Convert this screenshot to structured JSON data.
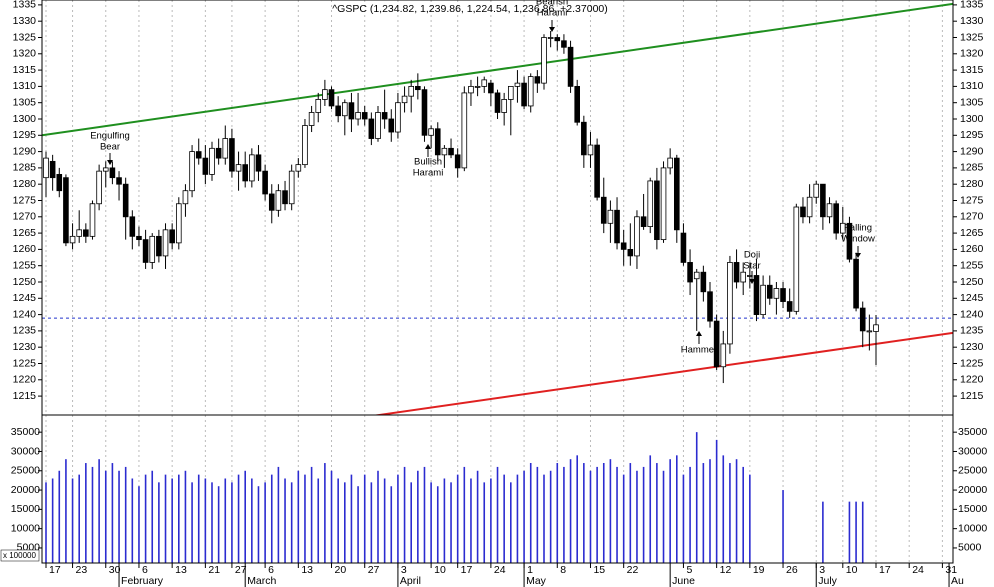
{
  "chart_data": {
    "type": "candlestick",
    "title": "^GSPC (1,234.82, 1,239.86, 1,224.54, 1,236.86, +2.37000)",
    "categories": [
      "17",
      null,
      null,
      null,
      "23",
      null,
      null,
      null,
      null,
      "30",
      null,
      null,
      null,
      null,
      "6",
      null,
      null,
      null,
      null,
      "13",
      null,
      null,
      null,
      null,
      "21",
      null,
      null,
      null,
      "27",
      null,
      null,
      null,
      null,
      "6",
      null,
      null,
      null,
      null,
      "13",
      null,
      null,
      null,
      null,
      "20",
      null,
      null,
      null,
      null,
      "27",
      null,
      null,
      null,
      null,
      "3",
      null,
      null,
      null,
      null,
      "10",
      null,
      null,
      null,
      "17",
      null,
      null,
      null,
      null,
      "24",
      null,
      null,
      null,
      null,
      "1",
      null,
      null,
      null,
      null,
      "8",
      null,
      null,
      null,
      null,
      "15",
      null,
      null,
      null,
      null,
      "22",
      null,
      null,
      null,
      null,
      null,
      null,
      null,
      null,
      "5",
      null,
      null,
      null,
      null,
      "12",
      null,
      null,
      null,
      null,
      "19",
      null,
      null,
      null,
      null,
      "26",
      null,
      null,
      null,
      null,
      "3",
      null,
      null,
      null,
      "10",
      null,
      null,
      null,
      null,
      "17",
      null,
      null,
      null,
      null,
      "24",
      null,
      null,
      null,
      null,
      "31",
      null
    ],
    "months": [
      null,
      null,
      null,
      null,
      null,
      null,
      null,
      null,
      null,
      null,
      null,
      "February",
      null,
      null,
      null,
      null,
      null,
      null,
      null,
      null,
      null,
      null,
      null,
      null,
      null,
      null,
      null,
      null,
      null,
      null,
      "March",
      null,
      null,
      null,
      null,
      null,
      null,
      null,
      null,
      null,
      null,
      null,
      null,
      null,
      null,
      null,
      null,
      null,
      null,
      null,
      null,
      null,
      null,
      "April",
      null,
      null,
      null,
      null,
      null,
      null,
      null,
      null,
      null,
      null,
      null,
      null,
      null,
      null,
      null,
      null,
      null,
      null,
      "May",
      null,
      null,
      null,
      null,
      null,
      null,
      null,
      null,
      null,
      null,
      null,
      null,
      null,
      null,
      null,
      null,
      null,
      null,
      null,
      null,
      null,
      "June",
      null,
      null,
      null,
      null,
      null,
      null,
      null,
      null,
      null,
      null,
      null,
      null,
      null,
      null,
      null,
      null,
      null,
      null,
      null,
      null,
      null,
      "July",
      null,
      null,
      null,
      null,
      null,
      null,
      null,
      null,
      null,
      null,
      null,
      null,
      null,
      null,
      null,
      null,
      null,
      null,
      null,
      "Au"
    ],
    "open": [
      1282,
      1287,
      1283,
      1282,
      1262,
      1264,
      1266,
      1264,
      1274,
      1284,
      1285,
      1282,
      1280,
      1270,
      1264,
      1263,
      1256,
      1264,
      1258,
      1266,
      1262,
      1274,
      1278,
      1290,
      1288,
      1283,
      1291,
      1288,
      1294,
      1284,
      1286,
      1281,
      1289,
      1284,
      1277,
      1272,
      1278,
      1274,
      1284,
      1286,
      1298,
      1302,
      1306,
      1309,
      1304,
      1301,
      1305,
      1300,
      1302,
      1300,
      1294,
      1302,
      1300,
      1296,
      1305,
      1307,
      1310,
      1309,
      1295,
      1297,
      1289,
      1291,
      1289,
      1285,
      1308,
      1310,
      1310,
      1311,
      1308,
      1302,
      1306,
      1310,
      1311,
      1304,
      1313,
      1311,
      1325,
      1325,
      1324,
      1322,
      1310,
      1299,
      1289,
      1292,
      1276,
      1268,
      1272,
      1262,
      1260,
      1258,
      1270,
      1267,
      1281,
      1263,
      1285,
      1288,
      1265,
      1256,
      1251,
      1253,
      1247,
      1238,
      1224,
      1231,
      1256,
      1250,
      1252,
      1252,
      1240,
      1249,
      1245,
      1248,
      1244,
      1241,
      1273,
      1270,
      1276,
      1280,
      1270,
      1274,
      1265,
      1268,
      1257,
      1242,
      1235,
      1234.82,
      null,
      null,
      null,
      null,
      null,
      null,
      null,
      null,
      null,
      null,
      null
    ],
    "high": [
      1290,
      1289,
      1285,
      1283,
      1268,
      1272,
      1268,
      1275,
      1286,
      1287,
      1287,
      1284,
      1282,
      1272,
      1267,
      1266,
      1265,
      1266,
      1268,
      1268,
      1276,
      1280,
      1292,
      1294,
      1292,
      1293,
      1294,
      1298,
      1297,
      1290,
      1290,
      1291,
      1292,
      1286,
      1280,
      1280,
      1281,
      1286,
      1288,
      1300,
      1304,
      1308,
      1312,
      1310,
      1307,
      1306,
      1308,
      1308,
      1304,
      1302,
      1304,
      1309,
      1303,
      1308,
      1310,
      1312,
      1314,
      1310,
      1298,
      1299,
      1292,
      1294,
      1291,
      1310,
      1312,
      1313,
      1313,
      1312,
      1309,
      1308,
      1310,
      1315,
      1313,
      1314,
      1315,
      1326,
      1327,
      1326,
      1326,
      1324,
      1312,
      1301,
      1296,
      1294,
      1282,
      1275,
      1276,
      1266,
      1268,
      1272,
      1277,
      1282,
      1285,
      1287,
      1291,
      1289,
      1268,
      1260,
      1254,
      1255,
      1250,
      1240,
      1235,
      1258,
      1260,
      1256,
      1256,
      1257,
      1252,
      1252,
      1250,
      1250,
      1248,
      1274,
      1276,
      1280,
      1281,
      1280,
      1276,
      1275,
      1273,
      1270,
      1259,
      1244,
      1240,
      1239.86,
      null,
      null,
      null,
      null,
      null,
      null,
      null,
      null,
      null,
      null,
      null
    ],
    "low": [
      1276,
      1278,
      1276,
      1261,
      1260,
      1262,
      1262,
      1263,
      1272,
      1279,
      1280,
      1275,
      1263,
      1260,
      1261,
      1254,
      1254,
      1256,
      1254,
      1260,
      1260,
      1270,
      1276,
      1286,
      1280,
      1281,
      1286,
      1286,
      1282,
      1278,
      1279,
      1279,
      1281,
      1275,
      1268,
      1270,
      1272,
      1272,
      1282,
      1285,
      1296,
      1299,
      1304,
      1303,
      1299,
      1295,
      1296,
      1298,
      1298,
      1292,
      1293,
      1297,
      1293,
      1294,
      1302,
      1302,
      1306,
      1293,
      1291,
      1287,
      1285,
      1288,
      1282,
      1284,
      1304,
      1307,
      1308,
      1304,
      1300,
      1298,
      1295,
      1305,
      1303,
      1302,
      1308,
      1309,
      1322,
      1321,
      1320,
      1308,
      1298,
      1285,
      1285,
      1275,
      1265,
      1262,
      1260,
      1255,
      1255,
      1254,
      1266,
      1265,
      1260,
      1262,
      1283,
      1262,
      1255,
      1246,
      1235,
      1244,
      1236,
      1223,
      1219,
      1228,
      1248,
      1246,
      1248,
      1238,
      1239,
      1243,
      1240,
      1242,
      1239,
      1240,
      1268,
      1268,
      1274,
      1266,
      1268,
      1263,
      1263,
      1256,
      1241,
      1230,
      1229,
      1224.54,
      null,
      null,
      null,
      null,
      null,
      null,
      null,
      null,
      null,
      null,
      null
    ],
    "close": [
      1288,
      1282,
      1278,
      1262,
      1264,
      1266,
      1264,
      1274,
      1284,
      1285,
      1282,
      1280,
      1270,
      1264,
      1263,
      1256,
      1264,
      1258,
      1266,
      1262,
      1274,
      1278,
      1290,
      1288,
      1283,
      1291,
      1288,
      1294,
      1284,
      1286,
      1281,
      1289,
      1284,
      1277,
      1272,
      1278,
      1274,
      1284,
      1286,
      1298,
      1302,
      1306,
      1309,
      1304,
      1301,
      1305,
      1300,
      1302,
      1300,
      1294,
      1302,
      1300,
      1296,
      1305,
      1307,
      1310,
      1309,
      1295,
      1297,
      1289,
      1291,
      1289,
      1285,
      1308,
      1310,
      1310,
      1312,
      1308,
      1302,
      1306,
      1310,
      1311,
      1304,
      1313,
      1311,
      1325,
      1325,
      1324,
      1322,
      1310,
      1299,
      1289,
      1292,
      1276,
      1268,
      1272,
      1262,
      1260,
      1258,
      1270,
      1267,
      1281,
      1263,
      1285,
      1288,
      1266,
      1256,
      1250,
      1253,
      1247,
      1238,
      1224,
      1231,
      1256,
      1250,
      1253,
      1252,
      1240,
      1249,
      1245,
      1248,
      1244,
      1241,
      1273,
      1270,
      1276,
      1280,
      1270,
      1274,
      1265,
      1268,
      1257,
      1242,
      1235,
      1235,
      1236.86,
      null,
      null,
      null,
      null,
      null,
      null,
      null,
      null,
      null,
      null,
      null
    ],
    "volume": [
      22000,
      23000,
      25000,
      28000,
      23000,
      24000,
      27000,
      26000,
      28000,
      25000,
      27000,
      25000,
      26000,
      23000,
      21000,
      24000,
      25000,
      22000,
      24000,
      23000,
      24000,
      25000,
      22000,
      24000,
      23000,
      22000,
      21000,
      23000,
      22000,
      24000,
      25000,
      23000,
      21000,
      22000,
      24000,
      26000,
      23000,
      22000,
      25000,
      24000,
      26000,
      23000,
      27000,
      25000,
      23000,
      22000,
      24000,
      21000,
      24000,
      22000,
      25000,
      23000,
      21000,
      24000,
      26000,
      22000,
      25000,
      26000,
      22000,
      21000,
      23000,
      22000,
      24000,
      26000,
      23000,
      25000,
      22000,
      23000,
      26000,
      24000,
      22000,
      24000,
      25000,
      27000,
      26000,
      24000,
      25000,
      27000,
      26000,
      28000,
      29000,
      27000,
      25000,
      26000,
      27000,
      28000,
      26000,
      24000,
      27000,
      25000,
      26000,
      29000,
      27000,
      25000,
      28000,
      29000,
      24000,
      26000,
      35000,
      27000,
      28000,
      33000,
      29000,
      27000,
      28000,
      26000,
      24000,
      null,
      null,
      null,
      null,
      20000,
      null,
      null,
      null,
      null,
      null,
      17000,
      null,
      null,
      null,
      17000,
      17000,
      17000,
      null,
      null,
      null,
      null,
      null,
      null,
      null,
      null,
      null,
      null,
      null,
      null,
      null
    ],
    "ylim": [
      1209.2,
      1336.5
    ],
    "yticks": [
      1215,
      1220,
      1225,
      1230,
      1235,
      1240,
      1245,
      1250,
      1255,
      1260,
      1265,
      1270,
      1275,
      1280,
      1285,
      1290,
      1295,
      1300,
      1305,
      1310,
      1315,
      1320,
      1325,
      1330,
      1335
    ],
    "volume_ylim": [
      1100,
      39450
    ],
    "volume_yticks": [
      5000,
      10000,
      15000,
      20000,
      25000,
      30000,
      35000
    ],
    "volume_unit": "x 100000",
    "volume_color": "#2b2bd0",
    "up_color": "#ffffff",
    "down_color": "#000000",
    "grid": true,
    "trendlines": [
      {
        "color": "#1f8f1f",
        "y_start": 1295,
        "y_end": 1335.3
      },
      {
        "color": "#e02020",
        "y_start": 1194.4,
        "y_end": 1234.4
      }
    ],
    "reference_line": {
      "value": 1238.9,
      "color": "#2233cc"
    },
    "annotations": [
      {
        "lines": [
          "Engulfing",
          "Bear"
        ]
      },
      {
        "lines": [
          "Bullish",
          "Harami"
        ]
      },
      {
        "lines": [
          "Bearish",
          "Harami"
        ]
      },
      {
        "lines": [
          "Hammer"
        ]
      },
      {
        "lines": [
          "Doji",
          "Star"
        ]
      },
      {
        "lines": [
          "Falling",
          "Window"
        ]
      }
    ]
  }
}
